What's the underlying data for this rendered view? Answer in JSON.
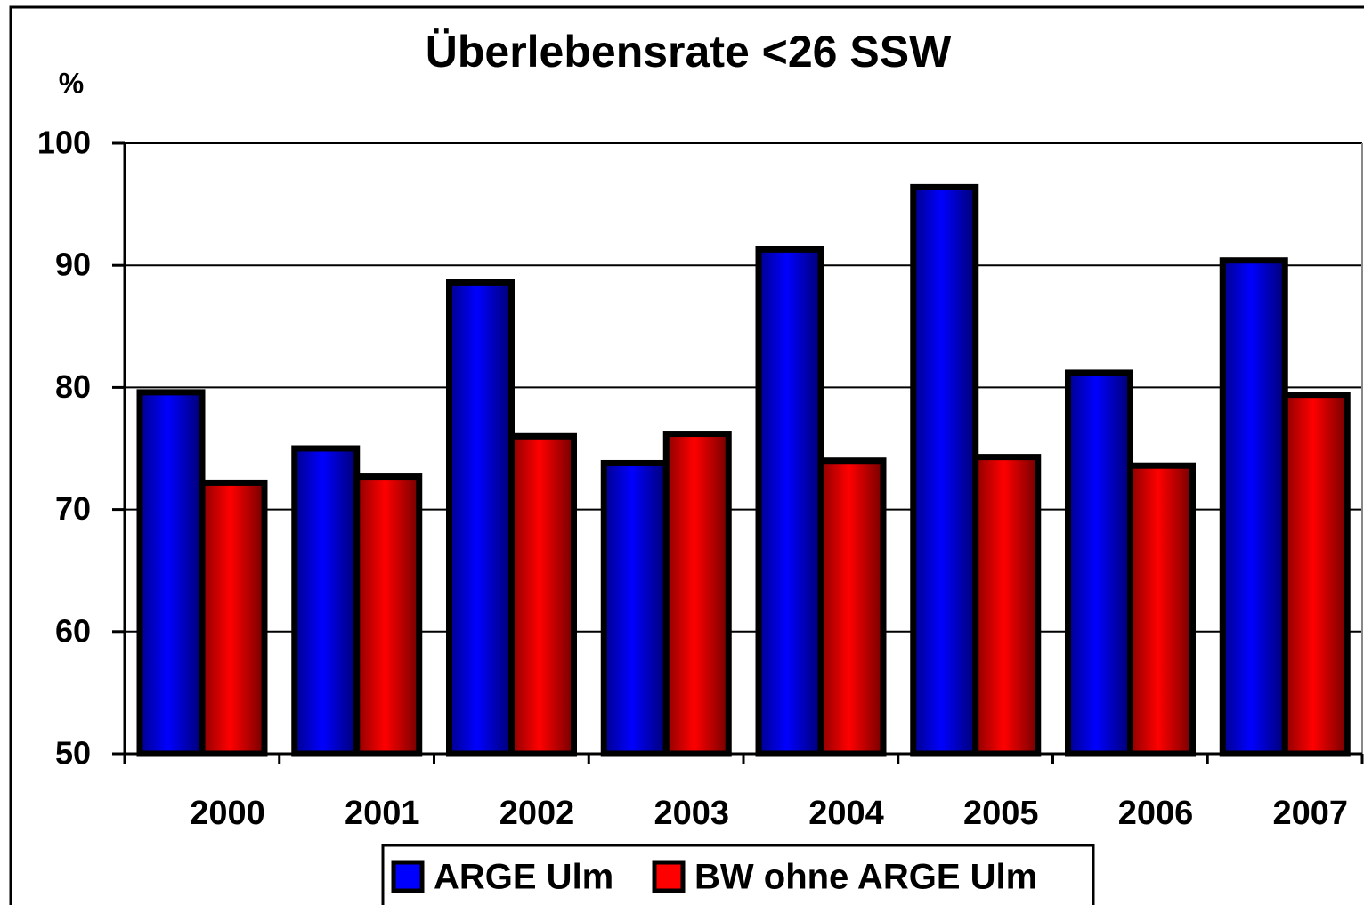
{
  "chart_data": {
    "type": "bar",
    "title": "Überlebensrate <26 SSW",
    "y_label": "%",
    "categories": [
      "2000",
      "2001",
      "2002",
      "2003",
      "2004",
      "2005",
      "2006",
      "2007"
    ],
    "series": [
      {
        "name": "ARGE Ulm",
        "color": "#0000ff",
        "values": [
          79.6,
          75.0,
          88.6,
          73.8,
          91.3,
          96.4,
          81.2,
          90.4
        ]
      },
      {
        "name": "BW ohne ARGE Ulm",
        "color": "#ff0000",
        "values": [
          72.2,
          72.7,
          76.0,
          76.2,
          74.0,
          74.3,
          73.6,
          79.4
        ]
      }
    ],
    "ylim": [
      50,
      100
    ],
    "yticks": [
      50,
      60,
      70,
      80,
      90,
      100
    ],
    "grid": true
  }
}
